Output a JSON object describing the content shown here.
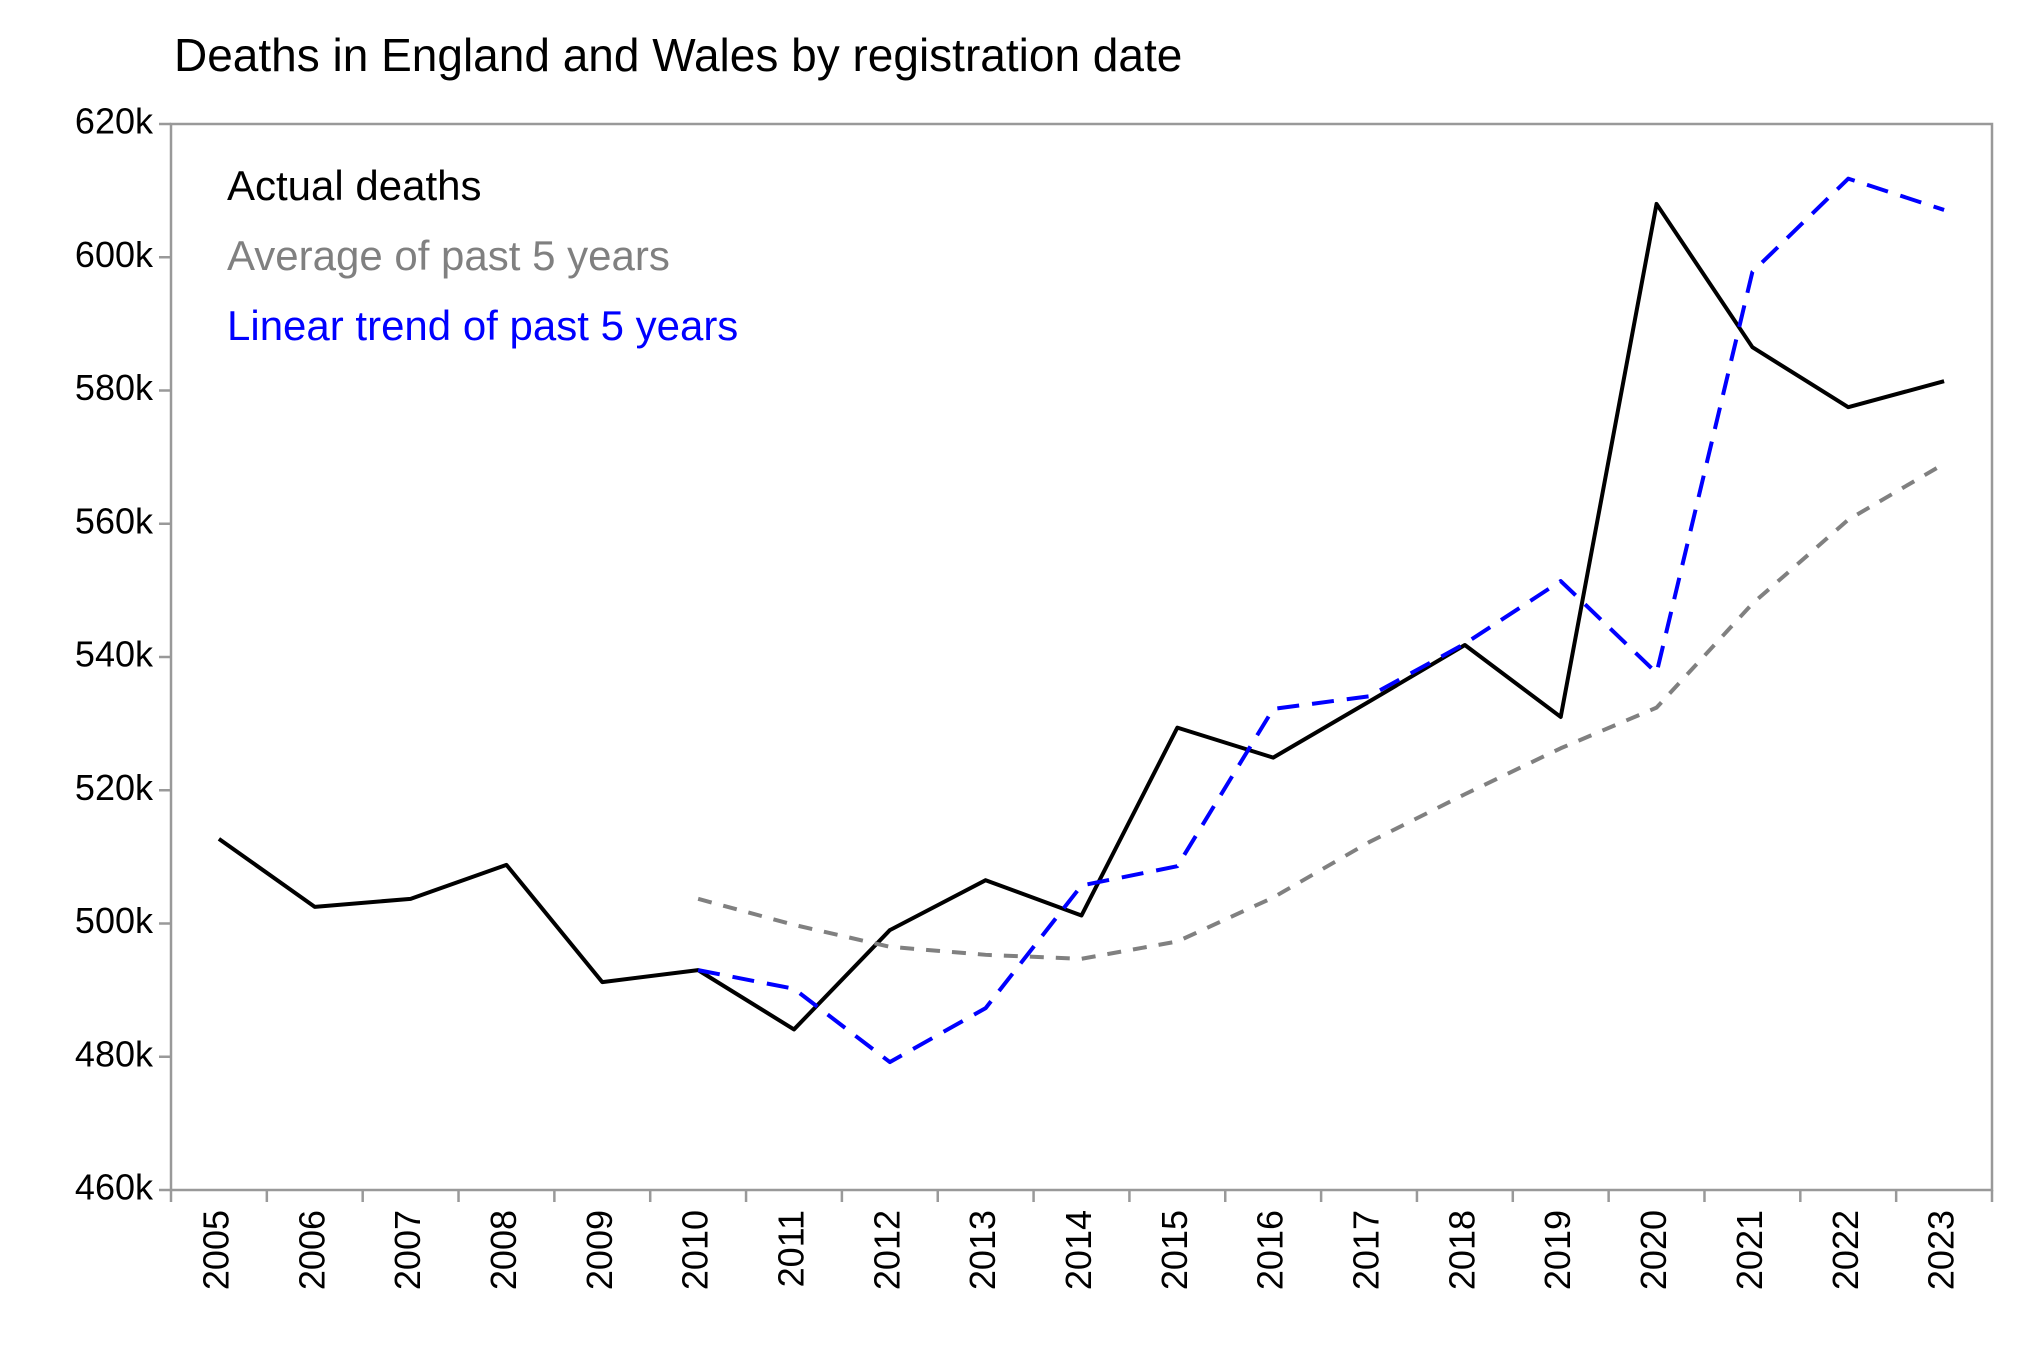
{
  "chart_data": {
    "type": "line",
    "title": "Deaths in England and Wales by registration date",
    "categories": [
      "2005",
      "2006",
      "2007",
      "2008",
      "2009",
      "2010",
      "2011",
      "2012",
      "2013",
      "2014",
      "2015",
      "2016",
      "2017",
      "2018",
      "2019",
      "2020",
      "2021",
      "2022",
      "2023"
    ],
    "series": [
      {
        "name": "Actual deaths",
        "color": "#000000",
        "dash": "solid",
        "values": [
          512.7,
          502.5,
          503.7,
          508.8,
          491.2,
          493.0,
          484.1,
          499.0,
          506.5,
          501.2,
          529.4,
          524.9,
          533.3,
          541.8,
          531.0,
          608.0,
          586.5,
          577.5,
          581.4
        ]
      },
      {
        "name": "Average of past 5 years",
        "color": "#808080",
        "dash": "dashed",
        "values": [
          null,
          null,
          null,
          null,
          null,
          503.7,
          499.8,
          496.5,
          495.3,
          494.7,
          497.3,
          503.9,
          512.2,
          519.4,
          526.3,
          532.4,
          548.0,
          560.6,
          569.0
        ]
      },
      {
        "name": "Linear trend of past 5 years",
        "color": "#0000ff",
        "dash": "dashed",
        "values": [
          null,
          null,
          null,
          null,
          null,
          493.0,
          490.2,
          479.2,
          487.3,
          505.7,
          508.6,
          532.2,
          534.1,
          542.0,
          551.4,
          537.6,
          597.8,
          611.8,
          607.1
        ]
      }
    ],
    "ylim": [
      460,
      620
    ],
    "yticks": [
      {
        "value": 460,
        "label": "460k"
      },
      {
        "value": 480,
        "label": "480k"
      },
      {
        "value": 500,
        "label": "500k"
      },
      {
        "value": 520,
        "label": "520k"
      },
      {
        "value": 540,
        "label": "540k"
      },
      {
        "value": 560,
        "label": "560k"
      },
      {
        "value": 580,
        "label": "580k"
      },
      {
        "value": 600,
        "label": "600k"
      },
      {
        "value": 620,
        "label": "620k"
      }
    ],
    "grid": false,
    "legend": "upper left"
  }
}
